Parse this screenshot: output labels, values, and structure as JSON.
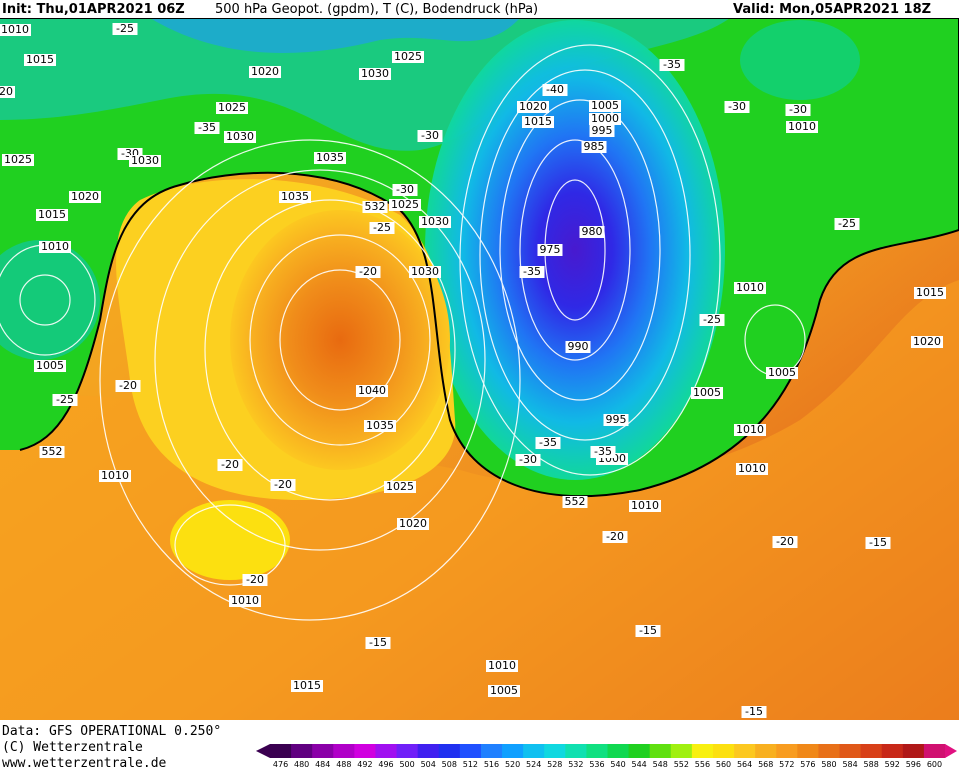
{
  "header": {
    "init": "Init: Thu,01APR2021 06Z",
    "description": "500 hPa Geopot. (gpdm), T (C), Bodendruck (hPa)",
    "valid": "Valid: Mon,05APR2021 18Z"
  },
  "footer": [
    "Data: GFS OPERATIONAL 0.250°",
    "(C) Wetterzentrale",
    "www.wetterzentrale.de"
  ],
  "map_labels": [
    "1010",
    "1015",
    "20",
    "1025",
    "1020",
    "1015",
    "1010",
    "1005",
    "-25",
    "552",
    "-20",
    "1010",
    "-25",
    "1020",
    "1025",
    "-35",
    "1030",
    "-30",
    "1030",
    "1035",
    "1030",
    "1025",
    "1035",
    "532",
    "1025",
    "-25",
    "1030",
    "-30",
    "-30",
    "1030",
    "-20",
    "1040",
    "1035",
    "1025",
    "1020",
    "-20",
    "-20",
    "-20",
    "1010",
    "-15",
    "1015",
    "1010",
    "1005",
    "-15",
    "-20",
    "1010",
    "552",
    "1000",
    "-30",
    "-35",
    "-35",
    "995",
    "990",
    "975",
    "980",
    "-35",
    "-40",
    "1020",
    "1015",
    "1005",
    "1000",
    "995",
    "985",
    "-35",
    "-30",
    "-30",
    "1010",
    "-25",
    "1010",
    "1015",
    "1020",
    "-25",
    "1005",
    "1005",
    "1010",
    "1010",
    "-20",
    "-15",
    "-15"
  ],
  "colorbar": {
    "labels": [
      476,
      480,
      484,
      488,
      492,
      496,
      500,
      504,
      508,
      512,
      516,
      520,
      524,
      528,
      532,
      536,
      540,
      544,
      548,
      552,
      556,
      560,
      564,
      568,
      572,
      576,
      580,
      584,
      588,
      592,
      596,
      600
    ]
  }
}
